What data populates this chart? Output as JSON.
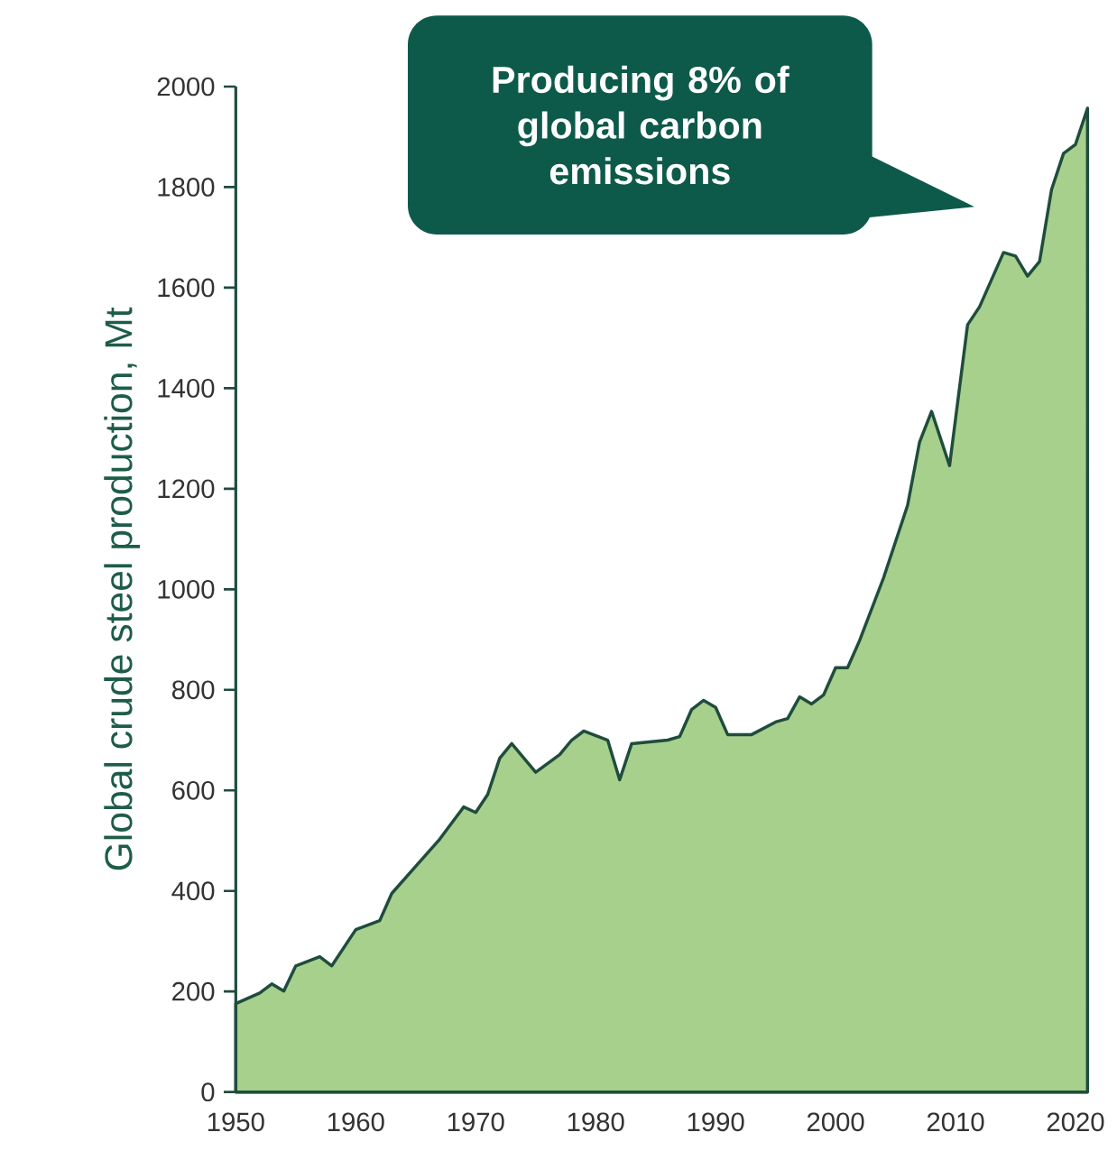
{
  "chart_data": {
    "type": "area",
    "ylabel": "Global crude steel production, Mt",
    "x": [
      1950,
      1952,
      1953,
      1954,
      1955,
      1957,
      1958,
      1960,
      1962,
      1963,
      1965,
      1967,
      1969,
      1970,
      1971,
      1972,
      1973,
      1975,
      1977,
      1978,
      1979,
      1981,
      1982,
      1983,
      1986,
      1987,
      1988,
      1989,
      1990,
      1991,
      1993,
      1995,
      1996,
      1997,
      1998,
      1999,
      2000,
      2001,
      2002,
      2004,
      2006,
      2007,
      2008,
      2009.5,
      2011,
      2012,
      2014,
      2015,
      2016,
      2017,
      2018,
      2019,
      2020,
      2021
    ],
    "values": [
      176,
      197,
      215,
      201,
      251,
      269,
      251,
      323,
      341,
      395,
      449,
      503,
      567,
      556,
      592,
      664,
      693,
      636,
      671,
      700,
      718,
      700,
      621,
      693,
      700,
      707,
      761,
      779,
      765,
      711,
      711,
      736,
      743,
      786,
      772,
      790,
      844,
      844,
      898,
      1023,
      1167,
      1293,
      1354,
      1246,
      1526,
      1562,
      1670,
      1663,
      1623,
      1652,
      1795,
      1867,
      1885,
      1957
    ],
    "color": "#a8d08d",
    "xlim": [
      1950,
      2021
    ],
    "ylim": [
      0,
      2000
    ],
    "xticks": [
      1950,
      1960,
      1970,
      1980,
      1990,
      2000,
      2010,
      2020
    ],
    "yticks": [
      0,
      200,
      400,
      600,
      800,
      1000,
      1200,
      1400,
      1600,
      1800,
      2000
    ],
    "annotations": [
      "Producing 8% of global carbon emissions"
    ]
  }
}
